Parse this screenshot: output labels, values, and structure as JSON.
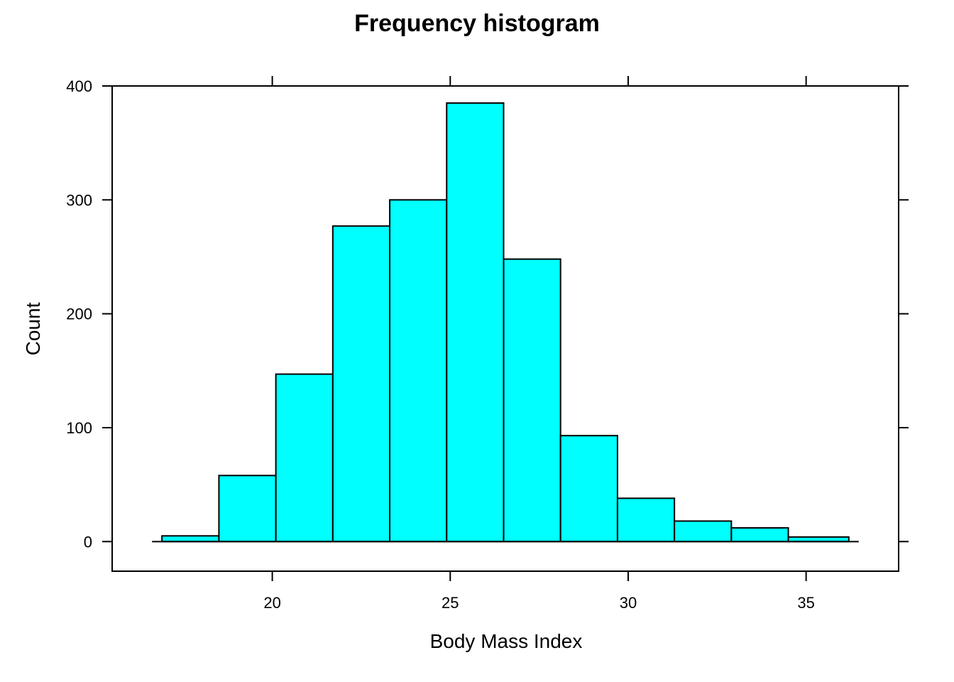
{
  "chart_data": {
    "type": "bar",
    "title": "Frequency histogram",
    "xlabel": "Body Mass Index",
    "ylabel": "Count",
    "bin_edges": [
      16.9,
      18.5,
      20.1,
      21.7,
      23.3,
      24.9,
      26.5,
      28.1,
      29.7,
      31.3,
      32.9,
      34.5,
      36.2
    ],
    "values": [
      5,
      58,
      147,
      277,
      300,
      385,
      248,
      93,
      38,
      18,
      12,
      4
    ],
    "xlim": [
      15.5,
      37.6
    ],
    "ylim": [
      -26,
      400
    ],
    "x_ticks": [
      20,
      25,
      30,
      35
    ],
    "x_tick_labels": [
      "20",
      "25",
      "30",
      "35"
    ],
    "y_ticks": [
      0,
      100,
      200,
      300,
      400
    ],
    "y_tick_labels": [
      "0",
      "100",
      "200",
      "300",
      "400"
    ],
    "bar_color": "#00FFFF",
    "grid": false,
    "legend": "none"
  }
}
